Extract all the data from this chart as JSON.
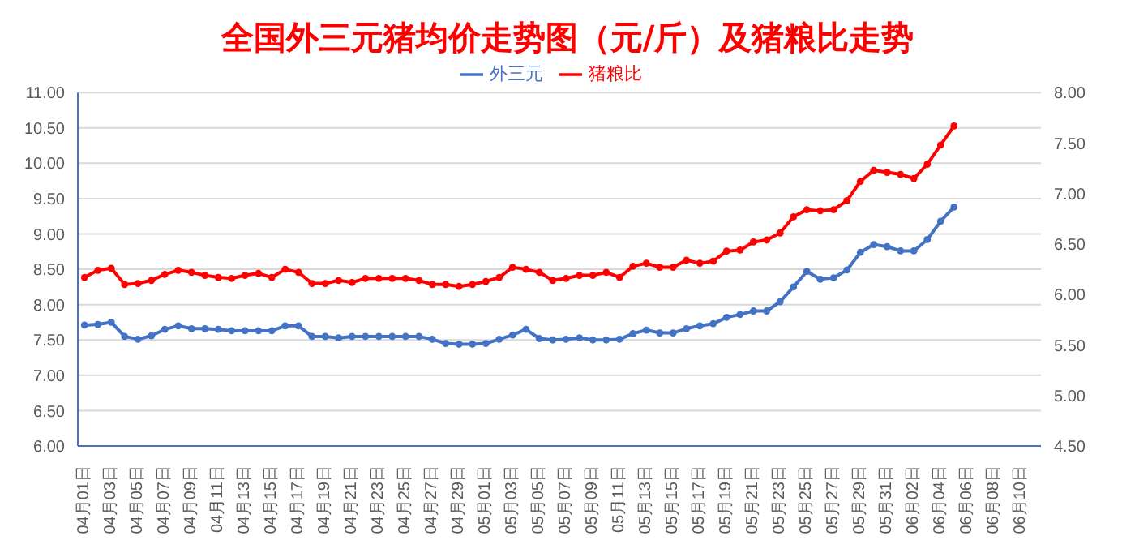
{
  "chart_data": {
    "type": "line",
    "title": "全国外三元猪均价走势图（元/斤）及猪粮比走势",
    "categories": [
      "04月01日",
      null,
      "04月03日",
      null,
      "04月05日",
      null,
      "04月07日",
      null,
      "04月09日",
      null,
      "04月11日",
      null,
      "04月13日",
      null,
      "04月15日",
      null,
      "04月17日",
      null,
      "04月19日",
      null,
      "04月21日",
      null,
      "04月23日",
      null,
      "04月25日",
      null,
      "04月27日",
      null,
      "04月29日",
      null,
      "05月01日",
      null,
      "05月03日",
      null,
      "05月05日",
      null,
      "05月07日",
      null,
      "05月09日",
      null,
      "05月11日",
      null,
      "05月13日",
      null,
      "05月15日",
      null,
      "05月17日",
      null,
      "05月19日",
      null,
      "05月21日",
      null,
      "05月23日",
      null,
      "05月25日",
      null,
      "05月27日",
      null,
      "05月29日",
      null,
      "05月31日",
      null,
      "06月02日",
      null,
      "06月04日",
      null,
      "06月06日",
      null,
      "06月08日",
      null,
      "06月10日",
      null
    ],
    "series": [
      {
        "name": "外三元",
        "color": "#4472c4",
        "values": [
          7.71,
          7.72,
          7.75,
          7.55,
          7.51,
          7.56,
          7.65,
          7.7,
          7.66,
          7.66,
          7.65,
          7.63,
          7.63,
          7.63,
          7.63,
          7.7,
          7.7,
          7.55,
          7.55,
          7.53,
          7.55,
          7.55,
          7.55,
          7.55,
          7.55,
          7.55,
          7.51,
          7.45,
          7.44,
          7.44,
          7.45,
          7.51,
          7.57,
          7.65,
          7.52,
          7.5,
          7.51,
          7.53,
          7.5,
          7.5,
          7.51,
          7.59,
          7.64,
          7.6,
          7.6,
          7.66,
          7.7,
          7.73,
          7.82,
          7.86,
          7.91,
          7.91,
          8.04,
          8.25,
          8.47,
          8.36,
          8.38,
          8.49,
          8.74,
          8.85,
          8.82,
          8.76,
          8.76,
          8.92,
          9.18,
          9.38,
          null,
          null,
          null,
          null,
          null,
          null
        ]
      },
      {
        "name": "猪粮比",
        "color": "#ff0000",
        "axis": "y2",
        "values": [
          6.17,
          6.24,
          6.26,
          6.1,
          6.11,
          6.14,
          6.2,
          6.24,
          6.22,
          6.19,
          6.17,
          6.16,
          6.19,
          6.21,
          6.17,
          6.25,
          6.22,
          6.11,
          6.11,
          6.14,
          6.12,
          6.16,
          6.16,
          6.16,
          6.16,
          6.14,
          6.1,
          6.1,
          6.08,
          6.1,
          6.13,
          6.17,
          6.27,
          6.25,
          6.22,
          6.14,
          6.16,
          6.19,
          6.19,
          6.22,
          6.17,
          6.28,
          6.31,
          6.27,
          6.27,
          6.34,
          6.31,
          6.33,
          6.43,
          6.44,
          6.52,
          6.54,
          6.61,
          6.77,
          6.84,
          6.83,
          6.84,
          6.93,
          7.12,
          7.23,
          7.21,
          7.19,
          7.15,
          7.29,
          7.48,
          7.67,
          null,
          null,
          null,
          null,
          null,
          null
        ]
      }
    ],
    "ylim": [
      6,
      11
    ],
    "yticks": [
      {
        "value": 6,
        "label": "6.00"
      },
      {
        "value": 6.5,
        "label": "6.50"
      },
      {
        "value": 7,
        "label": "7.00"
      },
      {
        "value": 7.5,
        "label": "7.50"
      },
      {
        "value": 8,
        "label": "8.00"
      },
      {
        "value": 8.5,
        "label": "8.50"
      },
      {
        "value": 9,
        "label": "9.00"
      },
      {
        "value": 9.5,
        "label": "9.50"
      },
      {
        "value": 10,
        "label": "10.00"
      },
      {
        "value": 10.5,
        "label": "10.50"
      },
      {
        "value": 11,
        "label": "11.00"
      }
    ],
    "y2lim": [
      4.5,
      8
    ],
    "y2ticks": [
      {
        "value": 4.5,
        "label": "4.50"
      },
      {
        "value": 5,
        "label": "5.00"
      },
      {
        "value": 5.5,
        "label": "5.50"
      },
      {
        "value": 6,
        "label": "6.00"
      },
      {
        "value": 6.5,
        "label": "6.50"
      },
      {
        "value": 7,
        "label": "7.00"
      },
      {
        "value": 7.5,
        "label": "7.50"
      },
      {
        "value": 8,
        "label": "8.00"
      }
    ],
    "grid": "y",
    "legend": "top",
    "marker": "circle",
    "line_style": "solid"
  }
}
